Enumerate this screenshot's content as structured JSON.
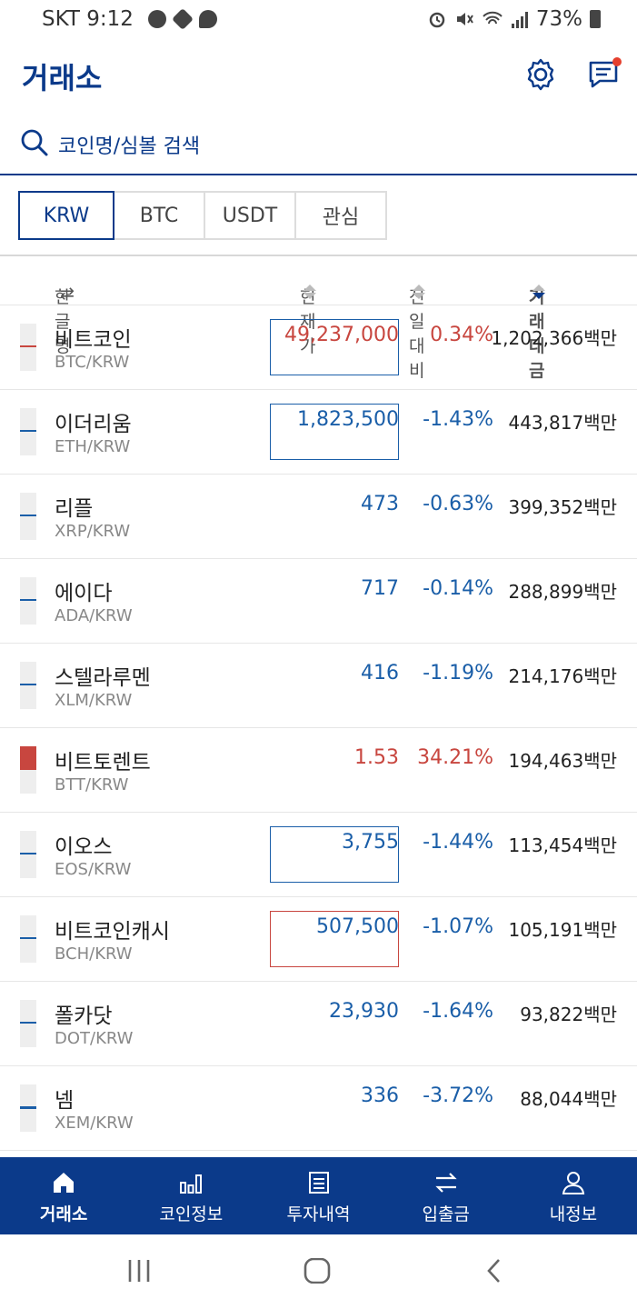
{
  "status": {
    "carrier_time": "SKT 9:12",
    "battery": "73%"
  },
  "header": {
    "title": "거래소"
  },
  "search": {
    "placeholder": "코인명/심볼 검색"
  },
  "tabs": [
    {
      "label": "KRW",
      "active": true
    },
    {
      "label": "BTC",
      "active": false
    },
    {
      "label": "USDT",
      "active": false
    },
    {
      "label": "관심",
      "active": false
    }
  ],
  "columns": {
    "name": "한글명",
    "price": "현재가",
    "change": "전일대비",
    "volume": "거래대금"
  },
  "colors": {
    "brand": "#0b3a8a",
    "up": "#c8463f",
    "down": "#1a5ea8",
    "notification_dot": "#e5402e"
  },
  "rows": [
    {
      "name": "비트코인",
      "symbol": "BTC/KRW",
      "price": "49,237,000",
      "change": "0.34%",
      "volume": "1,202,366백만",
      "direction": "up",
      "highlight": "blue"
    },
    {
      "name": "이더리움",
      "symbol": "ETH/KRW",
      "price": "1,823,500",
      "change": "-1.43%",
      "volume": "443,817백만",
      "direction": "down",
      "highlight": "blue"
    },
    {
      "name": "리플",
      "symbol": "XRP/KRW",
      "price": "473",
      "change": "-0.63%",
      "volume": "399,352백만",
      "direction": "down",
      "highlight": "none"
    },
    {
      "name": "에이다",
      "symbol": "ADA/KRW",
      "price": "717",
      "change": "-0.14%",
      "volume": "288,899백만",
      "direction": "down",
      "highlight": "none"
    },
    {
      "name": "스텔라루멘",
      "symbol": "XLM/KRW",
      "price": "416",
      "change": "-1.19%",
      "volume": "214,176백만",
      "direction": "down",
      "highlight": "none"
    },
    {
      "name": "비트토렌트",
      "symbol": "BTT/KRW",
      "price": "1.53",
      "change": "34.21%",
      "volume": "194,463백만",
      "direction": "up",
      "highlight": "none"
    },
    {
      "name": "이오스",
      "symbol": "EOS/KRW",
      "price": "3,755",
      "change": "-1.44%",
      "volume": "113,454백만",
      "direction": "down",
      "highlight": "blue"
    },
    {
      "name": "비트코인캐시",
      "symbol": "BCH/KRW",
      "price": "507,500",
      "change": "-1.07%",
      "volume": "105,191백만",
      "direction": "down",
      "highlight": "red"
    },
    {
      "name": "폴카닷",
      "symbol": "DOT/KRW",
      "price": "23,930",
      "change": "-1.64%",
      "volume": "93,822백만",
      "direction": "down",
      "highlight": "none"
    },
    {
      "name": "넴",
      "symbol": "XEM/KRW",
      "price": "336",
      "change": "-3.72%",
      "volume": "88,044백만",
      "direction": "down",
      "highlight": "none"
    }
  ],
  "bottom_nav": [
    {
      "label": "거래소",
      "icon": "home-icon",
      "active": true
    },
    {
      "label": "코인정보",
      "icon": "bar-chart-icon",
      "active": false
    },
    {
      "label": "투자내역",
      "icon": "document-icon",
      "active": false
    },
    {
      "label": "입출금",
      "icon": "transfer-icon",
      "active": false
    },
    {
      "label": "내정보",
      "icon": "user-icon",
      "active": false
    }
  ]
}
